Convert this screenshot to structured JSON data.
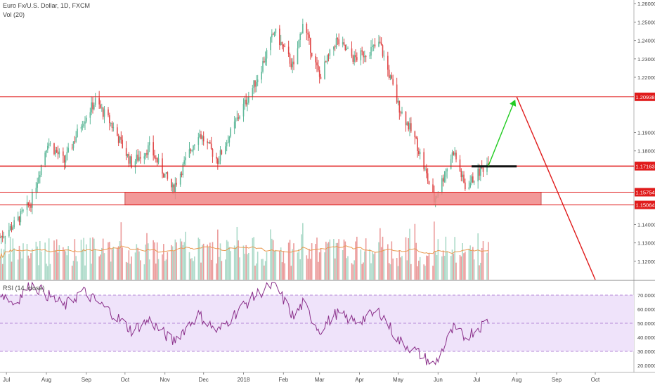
{
  "header": {
    "symbol_label": "Euro Fx/U.S. Dollar, 1D, FXCM",
    "volume_label": "Vol (20)",
    "rsi_label": "RSI (14, close)"
  },
  "colors": {
    "up": "#9ed3bf",
    "up_body": "#5fb99a",
    "down": "#e88a8a",
    "down_body": "#e04848",
    "level": "#e01b1b",
    "zone": "#f08888",
    "green_arrow": "#22cc22",
    "rsi_line": "#8a2f8a",
    "rsi_band": "#efe3fa",
    "vol_ma": "#ea9a50"
  },
  "chart_data": [
    {
      "type": "candlestick",
      "title": "Euro Fx/U.S. Dollar, 1D, FXCM",
      "xlabel": "",
      "ylabel": "",
      "ylim": [
        1.11,
        1.262
      ],
      "x_ticks": [
        "Jul",
        "Aug",
        "Sep",
        "Oct",
        "Nov",
        "Dec",
        "2018",
        "Feb",
        "Mar",
        "Apr",
        "May",
        "Jun",
        "Jul",
        "Aug",
        "Sep",
        "Oct"
      ],
      "y_ticks": [
        "1.26000",
        "1.25000",
        "1.24000",
        "1.23000",
        "1.22000",
        "1.20938",
        "1.19000",
        "1.18000",
        "1.17184",
        "1.17163",
        "1.15754",
        "1.15064",
        "1.14000",
        "1.13000",
        "1.12000"
      ],
      "horizontal_levels": [
        {
          "label": "1.20938",
          "value": 1.20938
        },
        {
          "label": "1.17184",
          "value": 1.17184
        },
        {
          "label": "1.17163",
          "value": 1.17163
        },
        {
          "label": "1.15754",
          "value": 1.15754
        },
        {
          "label": "1.15064",
          "value": 1.15064
        }
      ],
      "zone": {
        "low": 1.15064,
        "high": 1.15754,
        "from": "2017-10-01",
        "to": "2018-08-20"
      },
      "resistance_line": {
        "value": 1.1716,
        "from": "2018-06-27",
        "to": "2018-08-01"
      },
      "projection": [
        {
          "date": "2018-07-10",
          "value": 1.1718
        },
        {
          "date": "2018-08-01",
          "value": 1.2094
        },
        {
          "date": "2018-10-01",
          "value": 1.11
        }
      ],
      "price_path": [
        [
          "2017-06-26",
          1.133
        ],
        [
          "2017-07-07",
          1.14
        ],
        [
          "2017-07-20",
          1.152
        ],
        [
          "2017-08-02",
          1.185
        ],
        [
          "2017-08-15",
          1.174
        ],
        [
          "2017-08-29",
          1.196
        ],
        [
          "2017-09-08",
          1.207
        ],
        [
          "2017-09-20",
          1.195
        ],
        [
          "2017-10-06",
          1.173
        ],
        [
          "2017-10-20",
          1.182
        ],
        [
          "2017-11-07",
          1.159
        ],
        [
          "2017-11-27",
          1.19
        ],
        [
          "2017-12-12",
          1.175
        ],
        [
          "2017-12-29",
          1.2
        ],
        [
          "2018-01-12",
          1.22
        ],
        [
          "2018-01-25",
          1.245
        ],
        [
          "2018-02-09",
          1.225
        ],
        [
          "2018-02-16",
          1.25
        ],
        [
          "2018-03-01",
          1.22
        ],
        [
          "2018-03-14",
          1.24
        ],
        [
          "2018-03-28",
          1.23
        ],
        [
          "2018-04-17",
          1.238
        ],
        [
          "2018-05-01",
          1.205
        ],
        [
          "2018-05-15",
          1.185
        ],
        [
          "2018-05-29",
          1.153
        ],
        [
          "2018-06-13",
          1.18
        ],
        [
          "2018-06-22",
          1.16
        ],
        [
          "2018-07-10",
          1.174
        ]
      ]
    },
    {
      "type": "bar",
      "title": "Vol (20)",
      "xlabel": "",
      "ylabel": "",
      "ylim": [
        0,
        100
      ],
      "moving_average": "orange line"
    },
    {
      "type": "line",
      "title": "RSI (14, close)",
      "xlabel": "",
      "ylabel": "",
      "ylim": [
        15,
        80
      ],
      "y_ticks": [
        "70.0000",
        "60.0000",
        "50.0000",
        "40.0000",
        "30.0000",
        "20.0000"
      ],
      "band": [
        30,
        70
      ],
      "points": [
        [
          "2017-06-26",
          72
        ],
        [
          "2017-07-07",
          64
        ],
        [
          "2017-07-20",
          78
        ],
        [
          "2017-08-02",
          70
        ],
        [
          "2017-08-15",
          62
        ],
        [
          "2017-08-29",
          73
        ],
        [
          "2017-09-08",
          66
        ],
        [
          "2017-09-20",
          58
        ],
        [
          "2017-10-06",
          45
        ],
        [
          "2017-10-20",
          52
        ],
        [
          "2017-11-07",
          37
        ],
        [
          "2017-11-27",
          56
        ],
        [
          "2017-12-12",
          44
        ],
        [
          "2017-12-29",
          60
        ],
        [
          "2018-01-12",
          71
        ],
        [
          "2018-01-25",
          78
        ],
        [
          "2018-02-09",
          54
        ],
        [
          "2018-02-16",
          64
        ],
        [
          "2018-03-01",
          45
        ],
        [
          "2018-03-14",
          57
        ],
        [
          "2018-03-28",
          51
        ],
        [
          "2018-04-17",
          58
        ],
        [
          "2018-05-01",
          38
        ],
        [
          "2018-05-15",
          30
        ],
        [
          "2018-05-29",
          20
        ],
        [
          "2018-06-13",
          46
        ],
        [
          "2018-06-22",
          40
        ],
        [
          "2018-07-10",
          52
        ]
      ]
    }
  ]
}
